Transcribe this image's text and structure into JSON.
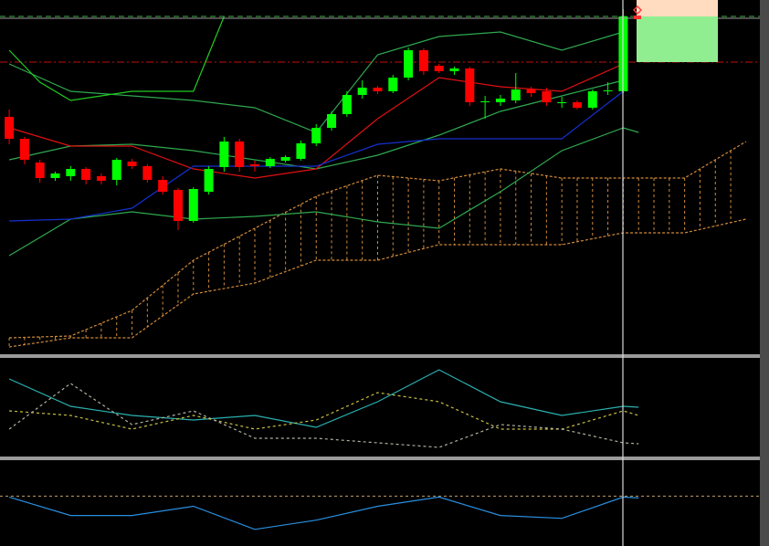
{
  "chart_data": [
    {
      "type": "candlestick",
      "x": [
        0,
        1,
        2,
        3,
        4,
        5,
        6,
        7,
        8,
        9,
        10,
        11,
        12,
        13,
        14,
        15,
        16,
        17,
        18,
        19,
        20,
        21,
        22,
        23,
        24,
        25,
        26,
        27,
        28,
        29,
        30,
        31,
        32,
        33,
        34,
        35,
        36,
        37,
        38,
        39,
        40
      ],
      "open": [
        260,
        236,
        210,
        193,
        195,
        203,
        195,
        191,
        211,
        206,
        191,
        180,
        146,
        178,
        205,
        233,
        208,
        206,
        212,
        214,
        231,
        248,
        263,
        284,
        292,
        288,
        303,
        333,
        316,
        310,
        313,
        276,
        276,
        278,
        290,
        288,
        275,
        276,
        270,
        288,
        288
      ],
      "high": [
        268,
        238,
        213,
        200,
        206,
        205,
        198,
        215,
        214,
        208,
        195,
        182,
        183,
        206,
        238,
        236,
        212,
        216,
        218,
        234,
        252,
        266,
        288,
        300,
        294,
        306,
        336,
        335,
        318,
        315,
        315,
        283,
        284,
        308,
        293,
        292,
        282,
        278,
        290,
        298,
        378
      ],
      "low": [
        230,
        208,
        188,
        190,
        190,
        186,
        186,
        185,
        203,
        188,
        175,
        136,
        144,
        175,
        200,
        200,
        200,
        204,
        210,
        212,
        228,
        245,
        260,
        280,
        285,
        286,
        300,
        306,
        308,
        306,
        272,
        258,
        272,
        275,
        282,
        272,
        270,
        268,
        268,
        284,
        286
      ],
      "close": [
        236,
        213,
        193,
        198,
        203,
        191,
        190,
        213,
        206,
        191,
        178,
        146,
        181,
        203,
        233,
        205,
        206,
        214,
        216,
        231,
        248,
        263,
        284,
        292,
        288,
        303,
        333,
        310,
        310,
        313,
        276,
        277,
        280,
        290,
        286,
        276,
        276,
        270,
        288,
        289,
        370
      ],
      "up_color": "#00ff00",
      "down_color": "#ff0000",
      "xlim": [
        -0.6,
        48.9
      ],
      "ylim": [
        0,
        388
      ],
      "series": [
        {
          "color": "#2fa84f",
          "x": [
            0,
            4,
            8,
            12,
            16,
            20,
            24,
            28,
            32,
            36,
            40
          ],
          "values": [
            318,
            288,
            283,
            278,
            270,
            243,
            328,
            348,
            353,
            333,
            353
          ]
        },
        {
          "color": "#2fa84f",
          "x": [
            0,
            4,
            8,
            12,
            16,
            20,
            24,
            28,
            32,
            36,
            40
          ],
          "values": [
            213,
            228,
            230,
            223,
            213,
            203,
            218,
            240,
            266,
            283,
            300
          ]
        },
        {
          "color": "#2fa84f",
          "x": [
            0,
            4,
            8,
            12,
            16,
            20,
            24,
            28,
            32,
            36,
            40,
            41
          ],
          "values": [
            108,
            148,
            156,
            148,
            151,
            156,
            145,
            138,
            178,
            223,
            248,
            243
          ]
        },
        {
          "color": "#e01010",
          "x": [
            0,
            4,
            8,
            12,
            16,
            20,
            24,
            28,
            32,
            36,
            40
          ],
          "values": [
            248,
            228,
            228,
            203,
            193,
            203,
            258,
            303,
            293,
            288,
            318
          ]
        },
        {
          "color": "#1530d0",
          "x": [
            0,
            4,
            8,
            12,
            16,
            20,
            24,
            28,
            32,
            36,
            40
          ],
          "values": [
            146,
            148,
            160,
            206,
            206,
            206,
            230,
            236,
            236,
            236,
            288
          ]
        },
        {
          "color": "#22cc22",
          "x": [
            0,
            2,
            4,
            6,
            8,
            10,
            12,
            14
          ],
          "values": [
            333,
            298,
            278,
            283,
            288,
            288,
            288,
            370
          ]
        }
      ],
      "cloud": {
        "color": "#d08a3a",
        "x": [
          0,
          4,
          8,
          12,
          16,
          20,
          24,
          28,
          32,
          36,
          40,
          44,
          48
        ],
        "upper": [
          18,
          20,
          48,
          103,
          138,
          173,
          196,
          190,
          203,
          193,
          193,
          193,
          233
        ],
        "lower": [
          8,
          18,
          18,
          66,
          78,
          103,
          103,
          120,
          120,
          120,
          133,
          133,
          148
        ]
      },
      "levels": [
        {
          "value": 370,
          "color": "#3cb043",
          "dash": "6 4"
        },
        {
          "value": 320,
          "color": "#c01010",
          "dash": "8 3 2 3"
        }
      ]
    },
    {
      "type": "line",
      "xlim": [
        -0.6,
        48.9
      ],
      "ylim": [
        0,
        108
      ],
      "series": [
        {
          "color": "#2ab0b0",
          "dash": "",
          "x": [
            0,
            4,
            8,
            12,
            16,
            20,
            24,
            28,
            32,
            36,
            40,
            41
          ],
          "values": [
            85,
            55,
            45,
            40,
            45,
            32,
            60,
            95,
            60,
            45,
            55,
            54
          ]
        },
        {
          "color": "#c8c040",
          "dash": "3 3",
          "x": [
            0,
            4,
            8,
            12,
            16,
            20,
            24,
            28,
            32,
            36,
            40,
            41
          ],
          "values": [
            50,
            45,
            30,
            45,
            30,
            40,
            70,
            60,
            30,
            30,
            50,
            45
          ]
        },
        {
          "color": "#b0b0a0",
          "dash": "3 3",
          "x": [
            0,
            4,
            8,
            12,
            16,
            20,
            24,
            28,
            32,
            36,
            40,
            41
          ],
          "values": [
            30,
            80,
            35,
            50,
            20,
            20,
            15,
            10,
            35,
            30,
            15,
            14
          ]
        }
      ]
    },
    {
      "type": "line",
      "xlim": [
        -0.6,
        48.9
      ],
      "ylim": [
        0,
        93
      ],
      "series": [
        {
          "color": "#2a8fe0",
          "dash": "",
          "x": [
            0,
            4,
            8,
            12,
            16,
            20,
            24,
            28,
            32,
            36,
            40,
            41
          ],
          "values": [
            53,
            33,
            33,
            43,
            18,
            28,
            43,
            53,
            33,
            30,
            53,
            52
          ]
        }
      ],
      "levels": [
        {
          "value": 54,
          "color": "#c0a060",
          "dash": "3 3"
        }
      ]
    }
  ]
}
